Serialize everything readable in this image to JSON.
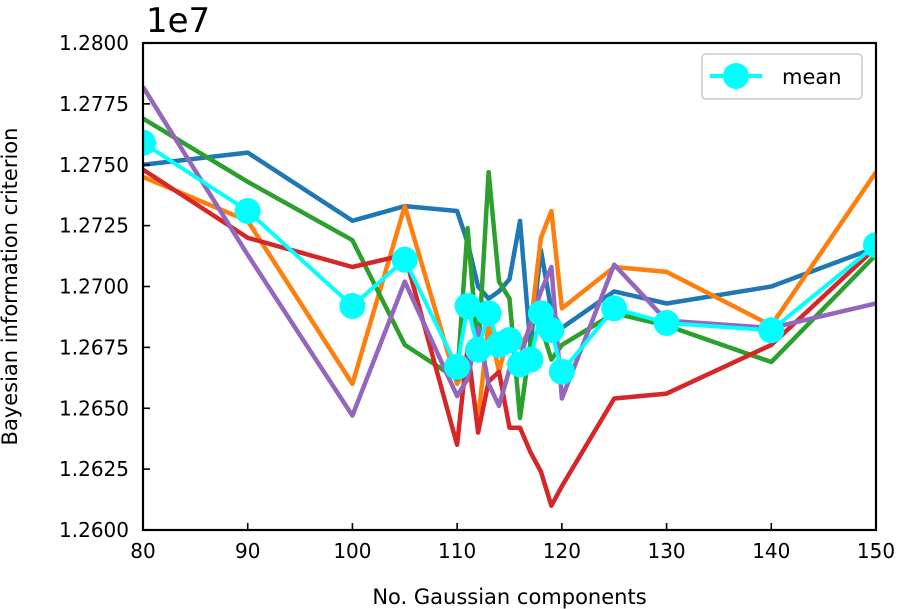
{
  "chart_data": {
    "type": "line",
    "title": "",
    "xlabel": "No. Gaussian components",
    "ylabel": "Bayesian information criterion",
    "offset_text": "1e7",
    "offset_multiplier": 10000000,
    "xlim": [
      80,
      150
    ],
    "ylim": [
      1.26,
      1.28
    ],
    "xticks": [
      80,
      90,
      100,
      110,
      120,
      130,
      140,
      150
    ],
    "yticks": [
      1.26,
      1.2625,
      1.265,
      1.2675,
      1.27,
      1.2725,
      1.275,
      1.2775,
      1.28
    ],
    "ytick_labels": [
      "1.2600",
      "1.2625",
      "1.2650",
      "1.2675",
      "1.2700",
      "1.2725",
      "1.2750",
      "1.2775",
      "1.2800"
    ],
    "grid": false,
    "legend": {
      "position": "top-right",
      "entries": [
        "mean"
      ]
    },
    "series": [
      {
        "color": "#1f77b4",
        "x": [
          80,
          90,
          100,
          105,
          110,
          111,
          112,
          113,
          114,
          115,
          116,
          117,
          118,
          119,
          120,
          125,
          130,
          140,
          150
        ],
        "y": [
          1.275,
          1.2755,
          1.2727,
          1.2733,
          1.2731,
          1.2718,
          1.27,
          1.2695,
          1.2698,
          1.2703,
          1.2727,
          1.2676,
          1.2715,
          1.269,
          1.2683,
          1.2698,
          1.2693,
          1.27,
          1.2716
        ]
      },
      {
        "color": "#ff7f0e",
        "x": [
          80,
          90,
          100,
          105,
          110,
          111,
          112,
          113,
          114,
          115,
          116,
          117,
          118,
          119,
          120,
          125,
          130,
          140,
          150
        ],
        "y": [
          1.2745,
          1.2727,
          1.266,
          1.2733,
          1.266,
          1.2668,
          1.2645,
          1.2685,
          1.2665,
          1.2682,
          1.2675,
          1.2683,
          1.272,
          1.2731,
          1.2691,
          1.2708,
          1.2706,
          1.2684,
          1.2747
        ]
      },
      {
        "color": "#2ca02c",
        "x": [
          80,
          90,
          100,
          105,
          110,
          111,
          112,
          113,
          114,
          115,
          116,
          117,
          118,
          119,
          120,
          125,
          130,
          140,
          150
        ],
        "y": [
          1.2769,
          1.2743,
          1.2719,
          1.2676,
          1.2662,
          1.2724,
          1.2672,
          1.2747,
          1.2702,
          1.2695,
          1.2646,
          1.2677,
          1.2684,
          1.267,
          1.2676,
          1.2689,
          1.2684,
          1.2669,
          1.2713
        ]
      },
      {
        "color": "#d62728",
        "x": [
          80,
          90,
          100,
          105,
          110,
          111,
          112,
          113,
          114,
          115,
          116,
          117,
          118,
          119,
          120,
          125,
          130,
          140,
          150
        ],
        "y": [
          1.2748,
          1.272,
          1.2708,
          1.2713,
          1.2635,
          1.2675,
          1.264,
          1.2661,
          1.2665,
          1.2642,
          1.2642,
          1.2632,
          1.2624,
          1.261,
          1.2618,
          1.2654,
          1.2656,
          1.2676,
          1.2716
        ]
      },
      {
        "color": "#9467bd",
        "x": [
          80,
          90,
          100,
          105,
          110,
          111,
          112,
          113,
          114,
          115,
          116,
          117,
          118,
          119,
          120,
          125,
          130,
          140,
          150
        ],
        "y": [
          1.2782,
          1.2713,
          1.2647,
          1.2702,
          1.2655,
          1.2662,
          1.2683,
          1.266,
          1.2651,
          1.2666,
          1.267,
          1.2685,
          1.2698,
          1.2708,
          1.2654,
          1.2709,
          1.2686,
          1.2683,
          1.2693
        ]
      },
      {
        "name": "mean",
        "color": "#00ffff",
        "marker": "circle",
        "x": [
          80,
          90,
          100,
          105,
          110,
          111,
          112,
          113,
          114,
          115,
          116,
          117,
          118,
          119,
          120,
          125,
          130,
          140,
          150
        ],
        "y": [
          1.2759,
          1.2731,
          1.2692,
          1.2711,
          1.2667,
          1.2692,
          1.2674,
          1.2689,
          1.2676,
          1.2678,
          1.2668,
          1.267,
          1.2689,
          1.2682,
          1.2665,
          1.2691,
          1.2685,
          1.2682,
          1.2717
        ]
      }
    ]
  }
}
